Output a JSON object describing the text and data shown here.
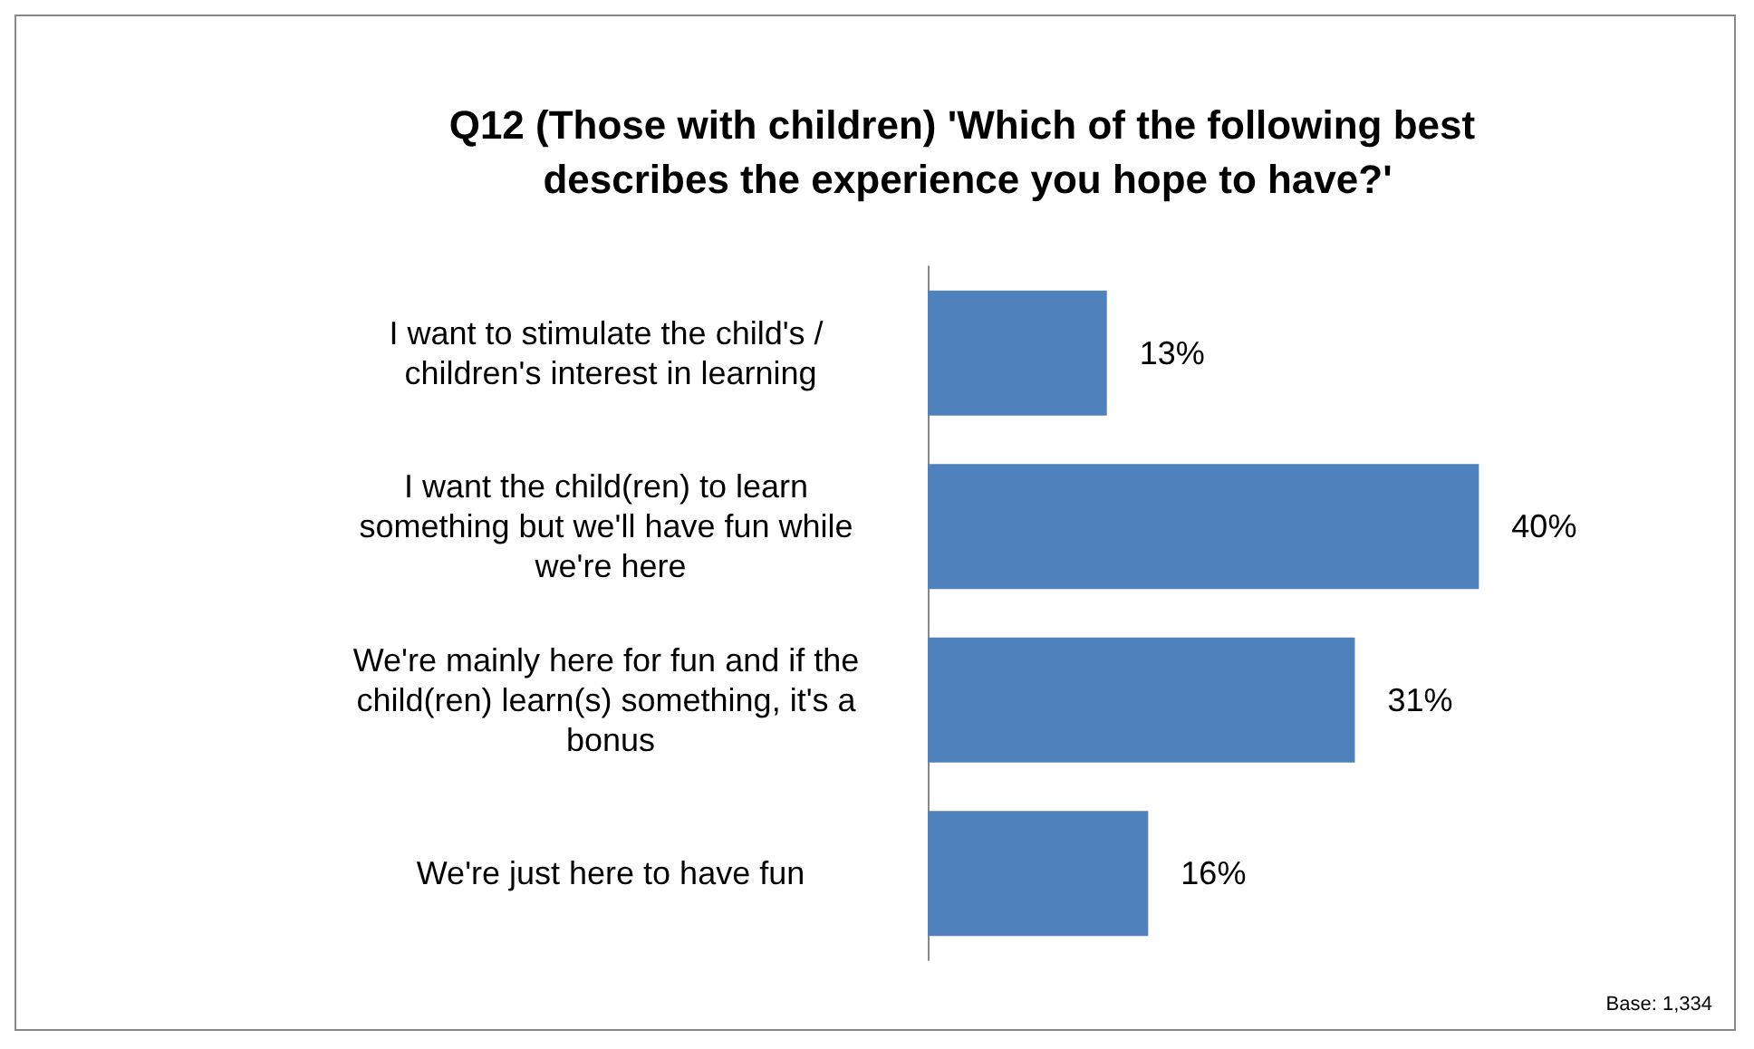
{
  "chart_data": {
    "type": "bar",
    "orientation": "horizontal",
    "title": "Q12 (Those with children) 'Which of the following best describes the experience you hope to have?'",
    "categories": [
      "I want to stimulate the child's / children's interest in learning",
      "I want the child(ren) to learn something but we'll have fun while we're here",
      "We're mainly here for fun and if the child(ren) learn(s) something, it's a bonus",
      "We're just here to have fun"
    ],
    "values": [
      13,
      40,
      31,
      16
    ],
    "value_labels": [
      "13%",
      "40%",
      "31%",
      "16%"
    ],
    "color": "#4f81bd",
    "annotations": [
      "Base: 1,334"
    ]
  }
}
